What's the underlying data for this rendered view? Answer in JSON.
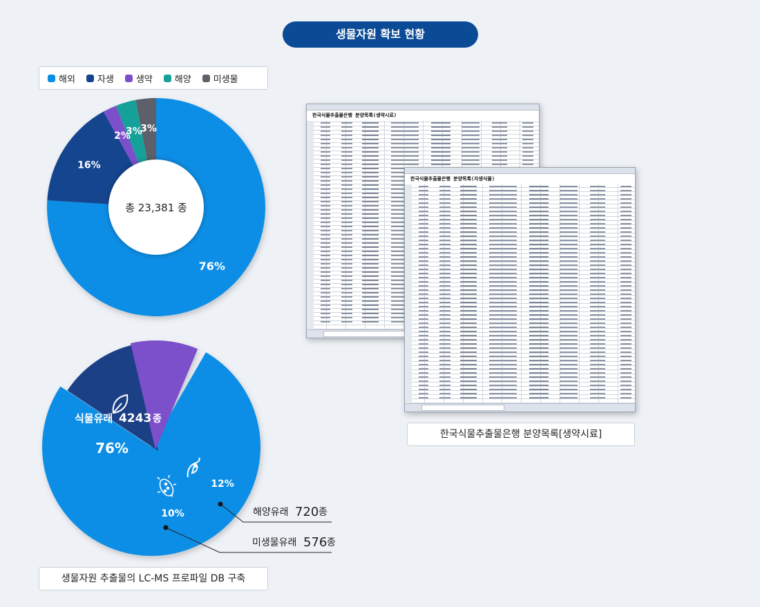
{
  "header": {
    "title": "생물자원 확보 현황"
  },
  "legend": [
    {
      "label": "해외",
      "color": "#0a8ee6"
    },
    {
      "label": "자생",
      "color": "#12448f"
    },
    {
      "label": "생약",
      "color": "#7b4fcb"
    },
    {
      "label": "해양",
      "color": "#17a09a"
    },
    {
      "label": "미생물",
      "color": "#5d6168"
    }
  ],
  "donut": {
    "center_label": "총 23,381 종",
    "slice_labels": [
      "76%",
      "16%",
      "2%",
      "3%",
      "3%"
    ]
  },
  "pie": {
    "plant_label": "식물유래",
    "plant_count": "4243",
    "plant_unit": "종",
    "plant_pct": "76%",
    "marine_pct": "12%",
    "micro_pct": "10%",
    "marine_callout_name": "해양유래",
    "marine_callout_count": "720",
    "marine_callout_unit": "종",
    "micro_callout_name": "미생물유래",
    "micro_callout_count": "576",
    "micro_callout_unit": "종"
  },
  "sheets": {
    "back_title": "한국식물추출물은행 분양목록(생약시료)",
    "front_title": "한국식물추출물은행 분양목록(자생식물)",
    "caption": "한국식물추출물은행 분양목록[생약시료]"
  },
  "bottom_caption": "생물자원 추출물의 LC-MS 프로파일 DB 구축",
  "chart_data": [
    {
      "type": "pie",
      "title": "",
      "center_label": "총 23,381 종",
      "categories": [
        "해외",
        "자생",
        "생약",
        "해양",
        "미생물"
      ],
      "values": [
        76,
        16,
        2,
        3,
        3
      ],
      "unit": "%",
      "colors": [
        "#0a8ee6",
        "#12448f",
        "#7b4fcb",
        "#17a09a",
        "#5d6168"
      ],
      "legend": "top-left"
    },
    {
      "type": "pie",
      "title": "",
      "categories": [
        "식물유래",
        "해양유래",
        "미생물유래"
      ],
      "values": [
        76,
        12,
        10
      ],
      "counts": [
        4243,
        720,
        576
      ],
      "unit": "%",
      "colors": [
        "#0a8ee6",
        "#1a3f86",
        "#7b4fcb"
      ]
    }
  ]
}
